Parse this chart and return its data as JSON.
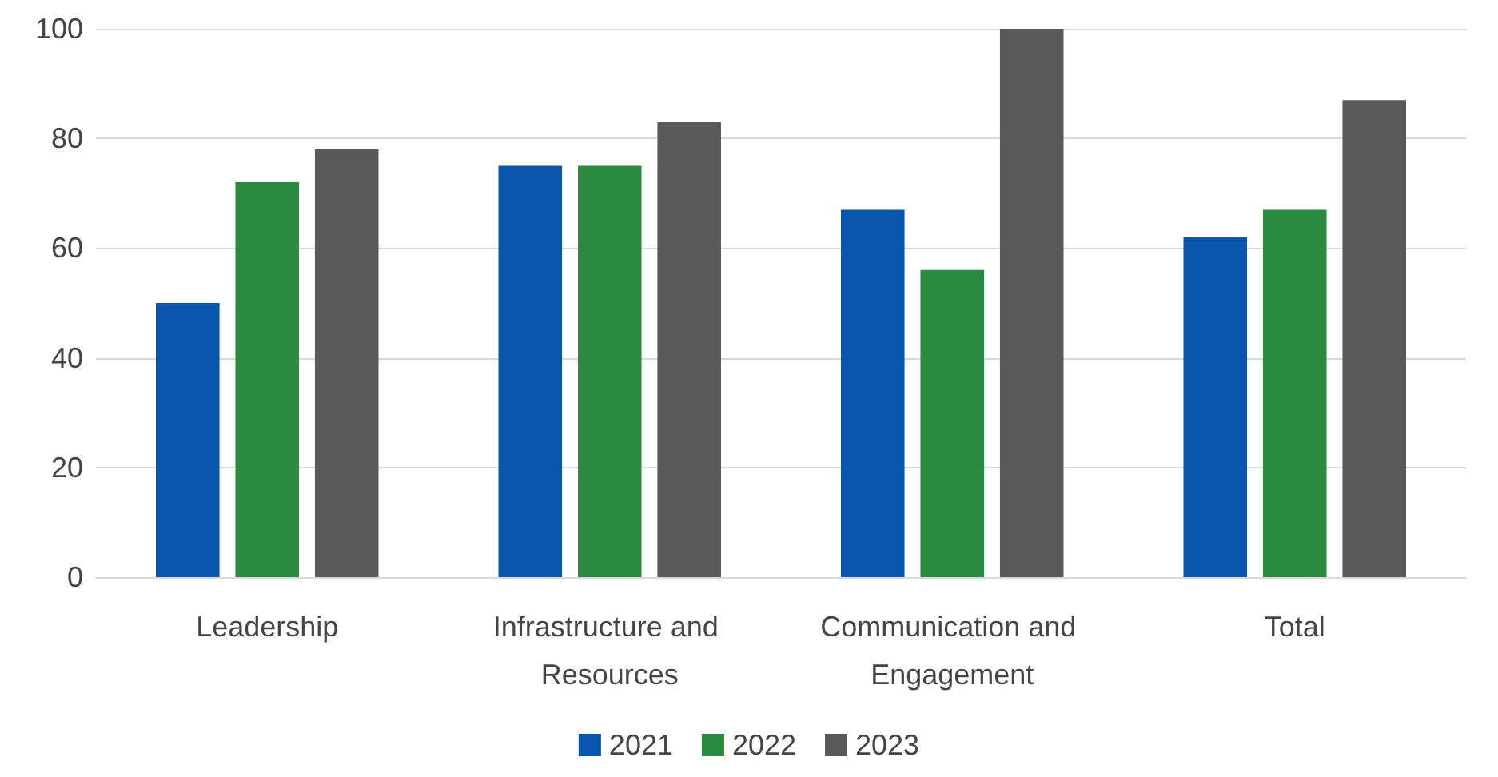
{
  "chart_data": {
    "type": "bar",
    "categories": [
      "Leadership",
      "Infrastructure and Resources",
      "Communication and Engagement",
      "Total"
    ],
    "series": [
      {
        "name": "2021",
        "color": "#0b56ad",
        "values": [
          50,
          75,
          67,
          62
        ]
      },
      {
        "name": "2022",
        "color": "#2a8a40",
        "values": [
          72,
          75,
          56,
          67
        ]
      },
      {
        "name": "2023",
        "color": "#595959",
        "values": [
          78,
          83,
          100,
          87
        ]
      }
    ],
    "ylim": [
      0,
      100
    ],
    "yticks": [
      0,
      20,
      40,
      60,
      80,
      100
    ],
    "grid": "y",
    "legend": "bottom"
  }
}
